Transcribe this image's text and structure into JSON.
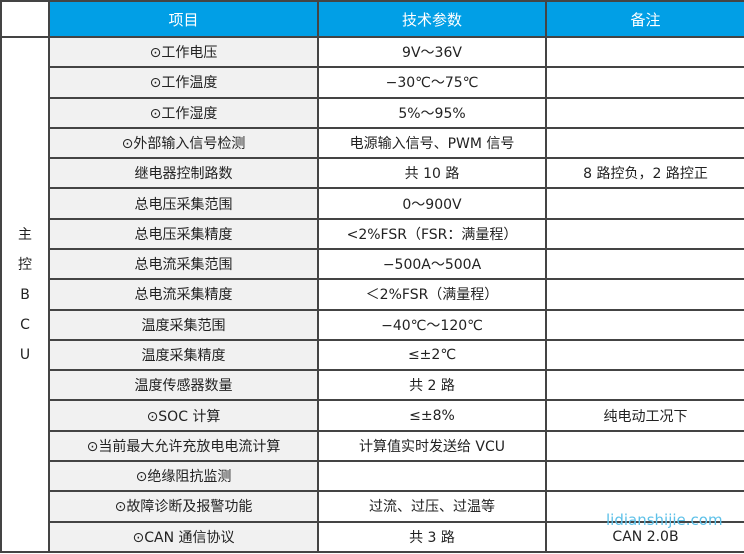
{
  "header": {
    "item": "项目",
    "param": "技术参数",
    "note": "备注"
  },
  "side_label": [
    "主",
    "控",
    "B",
    "C",
    "U"
  ],
  "rows": [
    {
      "item": "⊙工作电压",
      "param": "9V～36V",
      "note": ""
    },
    {
      "item": "⊙工作温度",
      "param": "−30℃～75℃",
      "note": ""
    },
    {
      "item": "⊙工作湿度",
      "param": "5%～95%",
      "note": ""
    },
    {
      "item": "⊙外部输入信号检测",
      "param": "电源输入信号、PWM 信号",
      "note": ""
    },
    {
      "item": "继电器控制路数",
      "param": "共 10 路",
      "note": "8 路控负，2 路控正"
    },
    {
      "item": "总电压采集范围",
      "param": "0～900V",
      "note": ""
    },
    {
      "item": "总电压采集精度",
      "param": "<2%FSR（FSR：满量程）",
      "note": ""
    },
    {
      "item": "总电流采集范围",
      "param": "−500A～500A",
      "note": ""
    },
    {
      "item": "总电流采集精度",
      "param": "＜2%FSR（满量程）",
      "note": ""
    },
    {
      "item": "温度采集范围",
      "param": "−40℃～120℃",
      "note": ""
    },
    {
      "item": "温度采集精度",
      "param": "≤±2℃",
      "note": ""
    },
    {
      "item": "温度传感器数量",
      "param": "共 2 路",
      "note": ""
    },
    {
      "item": "⊙SOC 计算",
      "param": "≤±8%",
      "note": "纯电动工况下"
    },
    {
      "item": "⊙当前最大允许充放电电流计算",
      "param": "计算值实时发送给 VCU",
      "note": ""
    },
    {
      "item": "⊙绝缘阻抗监测",
      "param": "",
      "note": ""
    },
    {
      "item": "⊙故障诊断及报警功能",
      "param": "过流、过压、过温等",
      "note": ""
    },
    {
      "item": "⊙CAN 通信协议",
      "param": "共 3 路",
      "note": "CAN 2.0B"
    }
  ],
  "watermark": "lidianshijie.com"
}
